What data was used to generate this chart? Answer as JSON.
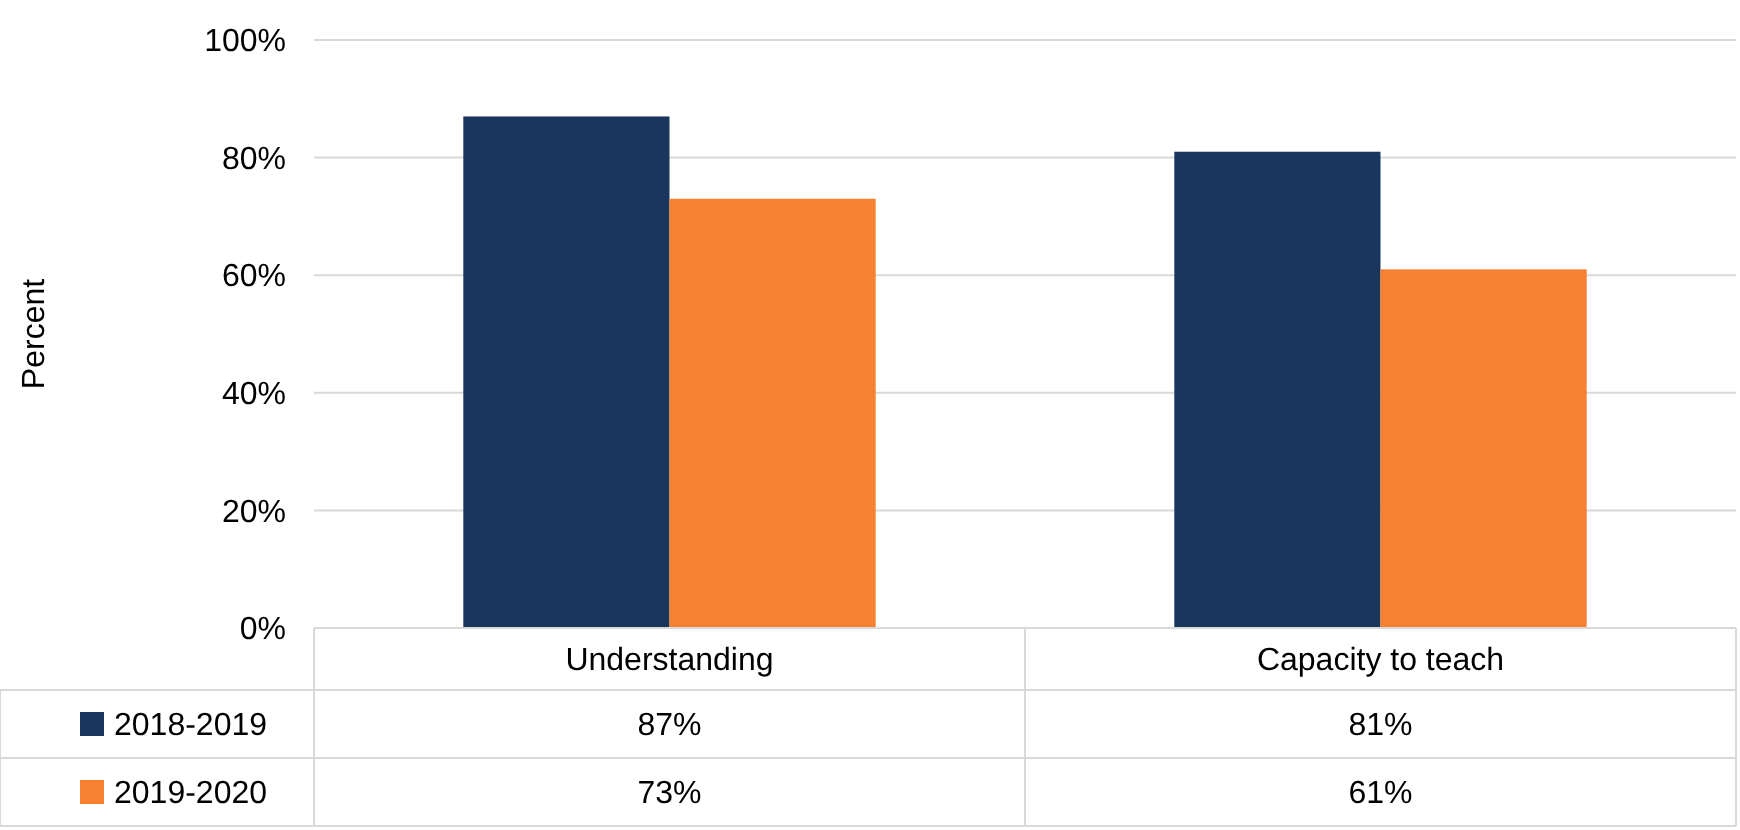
{
  "chart_data": {
    "type": "bar",
    "ylabel": "Percent",
    "categories": [
      "Understanding",
      "Capacity to teach"
    ],
    "series": [
      {
        "name": "2018-2019",
        "color": "#1b365d",
        "values": [
          87,
          81
        ],
        "value_labels": [
          "87%",
          "81%"
        ]
      },
      {
        "name": "2019-2020",
        "color": "#f68132",
        "values": [
          73,
          61
        ],
        "value_labels": [
          "73%",
          "61%"
        ]
      }
    ],
    "ylim": [
      0,
      100
    ],
    "yticks": [
      {
        "value": 0,
        "label": "0%"
      },
      {
        "value": 20,
        "label": "20%"
      },
      {
        "value": 40,
        "label": "40%"
      },
      {
        "value": 60,
        "label": "60%"
      },
      {
        "value": 80,
        "label": "80%"
      },
      {
        "value": 100,
        "label": "100%"
      }
    ],
    "grid": "y",
    "legend": "bottom"
  }
}
